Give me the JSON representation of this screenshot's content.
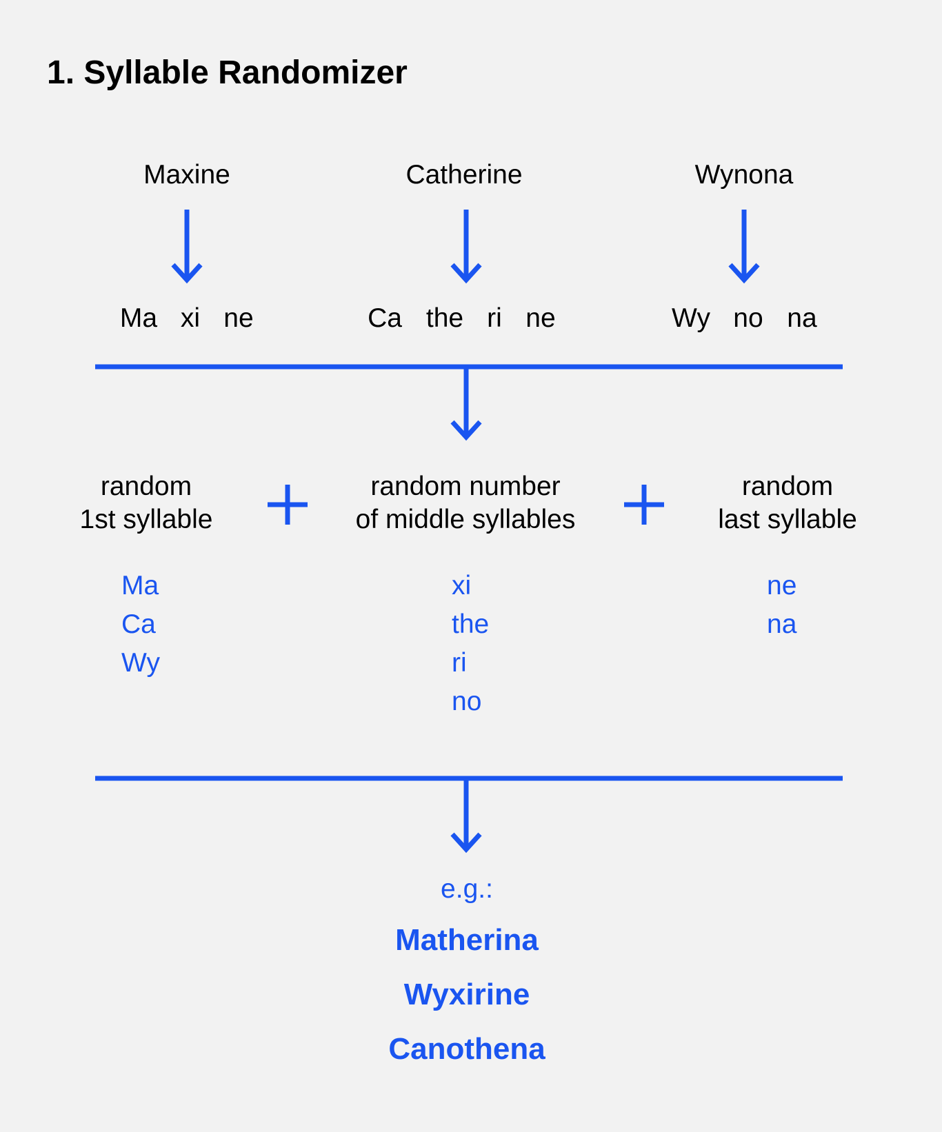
{
  "title": "1. Syllable Randomizer",
  "names": [
    {
      "name": "Maxine",
      "syllables": [
        "Ma",
        "xi",
        "ne"
      ]
    },
    {
      "name": "Catherine",
      "syllables": [
        "Ca",
        "the",
        "ri",
        "ne"
      ]
    },
    {
      "name": "Wynona",
      "syllables": [
        "Wy",
        "no",
        "na"
      ]
    }
  ],
  "categories": [
    {
      "line1": "random",
      "line2": "1st syllable"
    },
    {
      "line1": "random number",
      "line2": "of middle syllables"
    },
    {
      "line1": "random",
      "line2": "last syllable"
    }
  ],
  "operators": [
    "+",
    "+"
  ],
  "pools": {
    "first": [
      "Ma",
      "Ca",
      "Wy"
    ],
    "middle": [
      "xi",
      "the",
      "ri",
      "no"
    ],
    "last": [
      "ne",
      "na"
    ]
  },
  "example_label": "e.g.:",
  "results": [
    "Matherina",
    "Wyxirine",
    "Canothena"
  ],
  "colors": {
    "accent": "#1a55f0",
    "background": "#f2f2f2",
    "text": "#000000"
  }
}
